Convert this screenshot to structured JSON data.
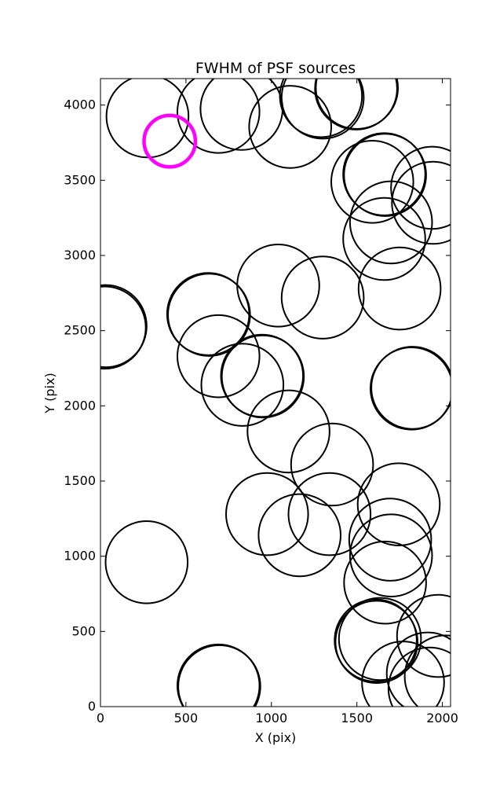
{
  "chart_data": {
    "type": "scatter",
    "title": "FWHM of PSF sources",
    "xlabel": "X (pix)",
    "ylabel": "Y (pix)",
    "xlim": [
      0,
      2048
    ],
    "ylim": [
      0,
      4176
    ],
    "xticks": [
      0,
      500,
      1000,
      1500,
      2000
    ],
    "yticks": [
      0,
      500,
      1000,
      1500,
      2000,
      2500,
      3000,
      3500,
      4000
    ],
    "grid": false,
    "marker": "open circle",
    "series": [
      {
        "color": "#000000",
        "radius": 240,
        "points": [
          [
            275,
            3925
          ],
          [
            690,
            3955
          ],
          [
            825,
            3975
          ],
          [
            1110,
            3855
          ],
          [
            1290,
            4060
          ],
          [
            1300,
            4050
          ],
          [
            1495,
            4110
          ],
          [
            1500,
            4115
          ],
          [
            1590,
            3490
          ],
          [
            1660,
            3540
          ],
          [
            1665,
            3535
          ],
          [
            1940,
            3450
          ],
          [
            1945,
            3350
          ],
          [
            1660,
            3110
          ],
          [
            1700,
            3220
          ],
          [
            1750,
            2780
          ],
          [
            1040,
            2800
          ],
          [
            1300,
            2720
          ],
          [
            630,
            2610
          ],
          [
            635,
            2605
          ],
          [
            30,
            2530
          ],
          [
            25,
            2520
          ],
          [
            690,
            2330
          ],
          [
            830,
            2140
          ],
          [
            945,
            2200
          ],
          [
            950,
            2195
          ],
          [
            1825,
            2120
          ],
          [
            1820,
            2115
          ],
          [
            1100,
            1830
          ],
          [
            1355,
            1610
          ],
          [
            1745,
            1345
          ],
          [
            975,
            1280
          ],
          [
            1340,
            1280
          ],
          [
            1165,
            1140
          ],
          [
            1695,
            1110
          ],
          [
            1700,
            1005
          ],
          [
            1665,
            825
          ],
          [
            270,
            960
          ],
          [
            690,
            140
          ],
          [
            695,
            135
          ],
          [
            1610,
            440
          ],
          [
            1615,
            430
          ],
          [
            1635,
            450
          ],
          [
            1975,
            470
          ],
          [
            1770,
            160
          ],
          [
            1915,
            220
          ],
          [
            2020,
            200
          ],
          [
            1925,
            120
          ]
        ]
      },
      {
        "color": "#ff00ff",
        "radius": 150,
        "points": [
          [
            405,
            3760
          ]
        ]
      }
    ]
  }
}
